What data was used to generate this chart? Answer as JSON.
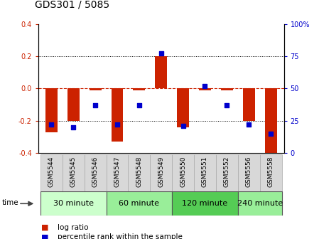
{
  "title": "GDS301 / 5085",
  "samples": [
    "GSM5544",
    "GSM5545",
    "GSM5546",
    "GSM5547",
    "GSM5548",
    "GSM5549",
    "GSM5550",
    "GSM5551",
    "GSM5552",
    "GSM5556",
    "GSM5558"
  ],
  "log_ratio": [
    -0.27,
    -0.2,
    -0.01,
    -0.33,
    -0.01,
    0.2,
    -0.24,
    -0.01,
    -0.01,
    -0.2,
    -0.42
  ],
  "percentile": [
    22,
    20,
    37,
    22,
    37,
    77,
    21,
    52,
    37,
    22,
    15
  ],
  "groups": [
    {
      "label": "30 minute",
      "start": 0,
      "end": 3,
      "color": "#ccffcc"
    },
    {
      "label": "60 minute",
      "start": 3,
      "end": 6,
      "color": "#99ee99"
    },
    {
      "label": "120 minute",
      "start": 6,
      "end": 9,
      "color": "#55cc55"
    },
    {
      "label": "240 minute",
      "start": 9,
      "end": 11,
      "color": "#99ee99"
    }
  ],
  "bar_color": "#cc2200",
  "dot_color": "#0000cc",
  "ylim_left": [
    -0.4,
    0.4
  ],
  "ylim_right": [
    0,
    100
  ],
  "yticks_left": [
    -0.4,
    -0.2,
    0.0,
    0.2,
    0.4
  ],
  "yticks_right": [
    0,
    25,
    50,
    75,
    100
  ],
  "bar_width": 0.55,
  "legend_items": [
    "log ratio",
    "percentile rank within the sample"
  ],
  "time_label": "time",
  "bgcolor": "white",
  "plot_bgcolor": "white",
  "grid_color": "black",
  "zero_line_color": "#cc2200",
  "title_fontsize": 10,
  "tick_fontsize": 7,
  "label_fontsize": 6.5,
  "group_fontsize": 8
}
